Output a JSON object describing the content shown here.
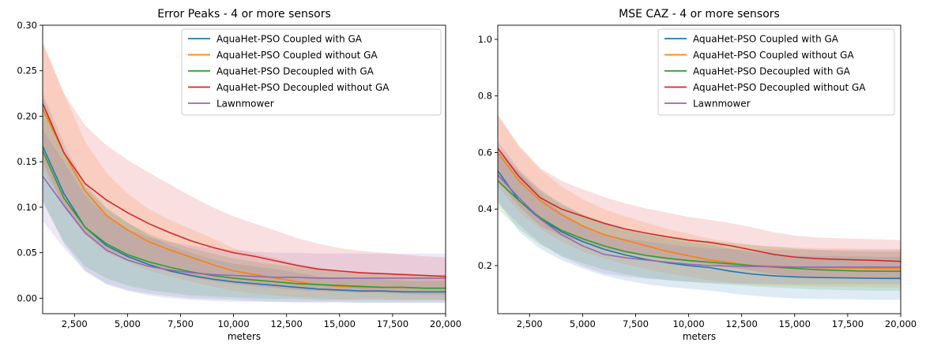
{
  "chart_data": [
    {
      "type": "line",
      "title": "Error Peaks - 4 or more sensors",
      "xlabel": "meters",
      "ylabel": "",
      "xlim": [
        1000,
        20000
      ],
      "ylim": [
        -0.017,
        0.3
      ],
      "xticks": [
        2500,
        5000,
        7500,
        10000,
        12500,
        15000,
        17500,
        20000
      ],
      "xtick_labels": [
        "2,500",
        "5,000",
        "7,500",
        "10,000",
        "12,500",
        "15,000",
        "17,500",
        "20,000"
      ],
      "yticks": [
        0.0,
        0.05,
        0.1,
        0.15,
        0.2,
        0.25,
        0.3
      ],
      "ytick_labels": [
        "0.00",
        "0.05",
        "0.10",
        "0.15",
        "0.20",
        "0.25",
        "0.30"
      ],
      "legend_position": "top-right",
      "x": [
        1000,
        2000,
        3000,
        4000,
        5000,
        6000,
        7000,
        8000,
        9000,
        10000,
        11000,
        12000,
        13000,
        14000,
        15000,
        16000,
        17000,
        18000,
        19000,
        20000
      ],
      "series": [
        {
          "name": "AquaHet-PSO Coupled with GA",
          "color": "#1f77b4",
          "values": [
            0.167,
            0.115,
            0.078,
            0.058,
            0.046,
            0.037,
            0.03,
            0.025,
            0.021,
            0.018,
            0.016,
            0.014,
            0.012,
            0.01,
            0.009,
            0.008,
            0.008,
            0.007,
            0.007,
            0.007
          ],
          "lower": [
            0.108,
            0.06,
            0.03,
            0.016,
            0.009,
            0.005,
            0.002,
            0.0,
            -0.001,
            -0.002,
            -0.003,
            -0.004,
            -0.004,
            -0.004,
            -0.004,
            -0.005,
            -0.005,
            -0.005,
            -0.005,
            -0.005
          ],
          "upper": [
            0.226,
            0.17,
            0.126,
            0.1,
            0.083,
            0.069,
            0.058,
            0.05,
            0.043,
            0.038,
            0.035,
            0.032,
            0.028,
            0.024,
            0.022,
            0.021,
            0.021,
            0.019,
            0.019,
            0.019
          ]
        },
        {
          "name": "AquaHet-PSO Coupled without GA",
          "color": "#ff7f0e",
          "values": [
            0.208,
            0.16,
            0.118,
            0.091,
            0.075,
            0.062,
            0.053,
            0.045,
            0.037,
            0.03,
            0.026,
            0.022,
            0.018,
            0.015,
            0.013,
            0.012,
            0.012,
            0.012,
            0.011,
            0.011
          ],
          "lower": [
            0.14,
            0.1,
            0.07,
            0.05,
            0.04,
            0.03,
            0.024,
            0.018,
            0.013,
            0.008,
            0.005,
            0.003,
            0.001,
            0.0,
            -0.001,
            -0.001,
            -0.001,
            -0.002,
            -0.002,
            -0.002
          ],
          "upper": [
            0.283,
            0.225,
            0.172,
            0.138,
            0.115,
            0.098,
            0.086,
            0.076,
            0.066,
            0.055,
            0.049,
            0.044,
            0.038,
            0.034,
            0.03,
            0.028,
            0.028,
            0.027,
            0.026,
            0.026
          ]
        },
        {
          "name": "AquaHet-PSO Decoupled with GA",
          "color": "#2ca02c",
          "values": [
            0.162,
            0.11,
            0.078,
            0.06,
            0.048,
            0.04,
            0.034,
            0.029,
            0.025,
            0.022,
            0.02,
            0.018,
            0.016,
            0.015,
            0.014,
            0.013,
            0.012,
            0.012,
            0.011,
            0.011
          ],
          "lower": [
            0.105,
            0.062,
            0.035,
            0.022,
            0.014,
            0.009,
            0.006,
            0.003,
            0.002,
            0.001,
            0.0,
            -0.001,
            -0.001,
            -0.002,
            -0.002,
            -0.002,
            -0.002,
            -0.002,
            -0.002,
            -0.002
          ],
          "upper": [
            0.222,
            0.16,
            0.122,
            0.098,
            0.083,
            0.071,
            0.062,
            0.055,
            0.049,
            0.044,
            0.04,
            0.037,
            0.034,
            0.032,
            0.03,
            0.029,
            0.027,
            0.027,
            0.025,
            0.025
          ]
        },
        {
          "name": "AquaHet-PSO Decoupled without GA",
          "color": "#d62728",
          "values": [
            0.214,
            0.16,
            0.126,
            0.108,
            0.094,
            0.082,
            0.072,
            0.063,
            0.056,
            0.05,
            0.046,
            0.041,
            0.036,
            0.032,
            0.03,
            0.028,
            0.027,
            0.026,
            0.025,
            0.024
          ],
          "lower": [
            0.15,
            0.1,
            0.07,
            0.054,
            0.044,
            0.036,
            0.029,
            0.023,
            0.019,
            0.016,
            0.013,
            0.011,
            0.009,
            0.008,
            0.007,
            0.006,
            0.006,
            0.005,
            0.004,
            0.004
          ],
          "upper": [
            0.28,
            0.225,
            0.19,
            0.168,
            0.152,
            0.138,
            0.125,
            0.112,
            0.1,
            0.09,
            0.082,
            0.074,
            0.066,
            0.06,
            0.055,
            0.052,
            0.05,
            0.048,
            0.046,
            0.045
          ]
        },
        {
          "name": "Lawnmower",
          "color": "#9467bd",
          "values": [
            0.134,
            0.102,
            0.072,
            0.053,
            0.042,
            0.035,
            0.031,
            0.028,
            0.026,
            0.025,
            0.024,
            0.023,
            0.023,
            0.022,
            0.022,
            0.022,
            0.022,
            0.022,
            0.022,
            0.022
          ],
          "lower": [
            0.085,
            0.055,
            0.03,
            0.015,
            0.008,
            0.003,
            0.0,
            -0.002,
            -0.003,
            -0.004,
            -0.004,
            -0.004,
            -0.005,
            -0.005,
            -0.005,
            -0.005,
            -0.005,
            -0.005,
            -0.005,
            -0.005
          ],
          "upper": [
            0.185,
            0.15,
            0.113,
            0.09,
            0.076,
            0.067,
            0.062,
            0.058,
            0.055,
            0.053,
            0.051,
            0.05,
            0.05,
            0.049,
            0.049,
            0.049,
            0.049,
            0.049,
            0.049,
            0.049
          ]
        }
      ]
    },
    {
      "type": "line",
      "title": "MSE CAZ - 4 or more sensors",
      "xlabel": "meters",
      "ylabel": "",
      "xlim": [
        1000,
        20000
      ],
      "ylim": [
        0.03,
        1.05
      ],
      "xticks": [
        2500,
        5000,
        7500,
        10000,
        12500,
        15000,
        17500,
        20000
      ],
      "xtick_labels": [
        "2,500",
        "5,000",
        "7,500",
        "10,000",
        "12,500",
        "15,000",
        "17,500",
        "20,000"
      ],
      "yticks": [
        0.2,
        0.4,
        0.6,
        0.8,
        1.0
      ],
      "ytick_labels": [
        "0.2",
        "0.4",
        "0.6",
        "0.8",
        "1.0"
      ],
      "legend_position": "top-right",
      "x": [
        1000,
        2000,
        3000,
        4000,
        5000,
        6000,
        7000,
        8000,
        9000,
        10000,
        11000,
        12000,
        13000,
        14000,
        15000,
        16000,
        17000,
        18000,
        19000,
        20000
      ],
      "series": [
        {
          "name": "AquaHet-PSO Coupled with GA",
          "color": "#1f77b4",
          "values": [
            0.535,
            0.43,
            0.365,
            0.32,
            0.285,
            0.258,
            0.238,
            0.222,
            0.21,
            0.2,
            0.193,
            0.18,
            0.17,
            0.164,
            0.16,
            0.158,
            0.157,
            0.156,
            0.155,
            0.155
          ],
          "lower": [
            0.43,
            0.32,
            0.26,
            0.22,
            0.19,
            0.165,
            0.148,
            0.135,
            0.125,
            0.118,
            0.112,
            0.102,
            0.094,
            0.088,
            0.084,
            0.082,
            0.081,
            0.08,
            0.079,
            0.079
          ],
          "upper": [
            0.64,
            0.54,
            0.47,
            0.42,
            0.38,
            0.35,
            0.328,
            0.31,
            0.296,
            0.283,
            0.275,
            0.26,
            0.247,
            0.24,
            0.236,
            0.234,
            0.233,
            0.232,
            0.231,
            0.231
          ]
        },
        {
          "name": "AquaHet-PSO Coupled without GA",
          "color": "#ff7f0e",
          "values": [
            0.6,
            0.5,
            0.43,
            0.38,
            0.34,
            0.31,
            0.29,
            0.27,
            0.25,
            0.235,
            0.22,
            0.21,
            0.2,
            0.198,
            0.195,
            0.193,
            0.192,
            0.191,
            0.19,
            0.19
          ],
          "lower": [
            0.48,
            0.39,
            0.33,
            0.285,
            0.25,
            0.225,
            0.205,
            0.188,
            0.172,
            0.16,
            0.148,
            0.14,
            0.132,
            0.13,
            0.128,
            0.126,
            0.125,
            0.124,
            0.123,
            0.123
          ],
          "upper": [
            0.73,
            0.62,
            0.54,
            0.48,
            0.435,
            0.4,
            0.375,
            0.352,
            0.33,
            0.312,
            0.295,
            0.283,
            0.272,
            0.268,
            0.264,
            0.262,
            0.261,
            0.26,
            0.259,
            0.259
          ]
        },
        {
          "name": "AquaHet-PSO Decoupled with GA",
          "color": "#2ca02c",
          "values": [
            0.5,
            0.43,
            0.37,
            0.325,
            0.295,
            0.27,
            0.25,
            0.236,
            0.226,
            0.218,
            0.212,
            0.206,
            0.2,
            0.195,
            0.19,
            0.186,
            0.183,
            0.181,
            0.18,
            0.18
          ],
          "lower": [
            0.4,
            0.33,
            0.275,
            0.235,
            0.208,
            0.186,
            0.169,
            0.157,
            0.149,
            0.142,
            0.137,
            0.132,
            0.127,
            0.123,
            0.119,
            0.116,
            0.114,
            0.112,
            0.111,
            0.111
          ],
          "upper": [
            0.6,
            0.53,
            0.465,
            0.415,
            0.382,
            0.354,
            0.331,
            0.315,
            0.303,
            0.294,
            0.287,
            0.28,
            0.273,
            0.267,
            0.261,
            0.256,
            0.252,
            0.25,
            0.249,
            0.249
          ]
        },
        {
          "name": "AquaHet-PSO Decoupled without GA",
          "color": "#d62728",
          "values": [
            0.615,
            0.515,
            0.44,
            0.4,
            0.375,
            0.35,
            0.33,
            0.315,
            0.302,
            0.29,
            0.282,
            0.27,
            0.255,
            0.24,
            0.23,
            0.225,
            0.222,
            0.22,
            0.218,
            0.215
          ],
          "lower": [
            0.5,
            0.41,
            0.34,
            0.305,
            0.283,
            0.262,
            0.245,
            0.232,
            0.221,
            0.211,
            0.204,
            0.194,
            0.182,
            0.17,
            0.162,
            0.158,
            0.156,
            0.154,
            0.152,
            0.15
          ],
          "upper": [
            0.735,
            0.625,
            0.545,
            0.5,
            0.47,
            0.443,
            0.42,
            0.402,
            0.387,
            0.372,
            0.362,
            0.35,
            0.335,
            0.318,
            0.306,
            0.3,
            0.297,
            0.295,
            0.293,
            0.29
          ]
        },
        {
          "name": "Lawnmower",
          "color": "#9467bd",
          "values": [
            0.52,
            0.44,
            0.365,
            0.31,
            0.27,
            0.24,
            0.228,
            0.22,
            0.212,
            0.205,
            0.2,
            0.198,
            0.197,
            0.196,
            0.195,
            0.195,
            0.195,
            0.195,
            0.195,
            0.195
          ],
          "lower": [
            0.42,
            0.345,
            0.28,
            0.232,
            0.198,
            0.172,
            0.161,
            0.154,
            0.148,
            0.143,
            0.139,
            0.137,
            0.136,
            0.135,
            0.134,
            0.134,
            0.134,
            0.134,
            0.134,
            0.134
          ],
          "upper": [
            0.62,
            0.535,
            0.45,
            0.388,
            0.342,
            0.308,
            0.295,
            0.286,
            0.276,
            0.267,
            0.261,
            0.259,
            0.258,
            0.257,
            0.256,
            0.256,
            0.256,
            0.256,
            0.256,
            0.256
          ]
        }
      ]
    }
  ]
}
